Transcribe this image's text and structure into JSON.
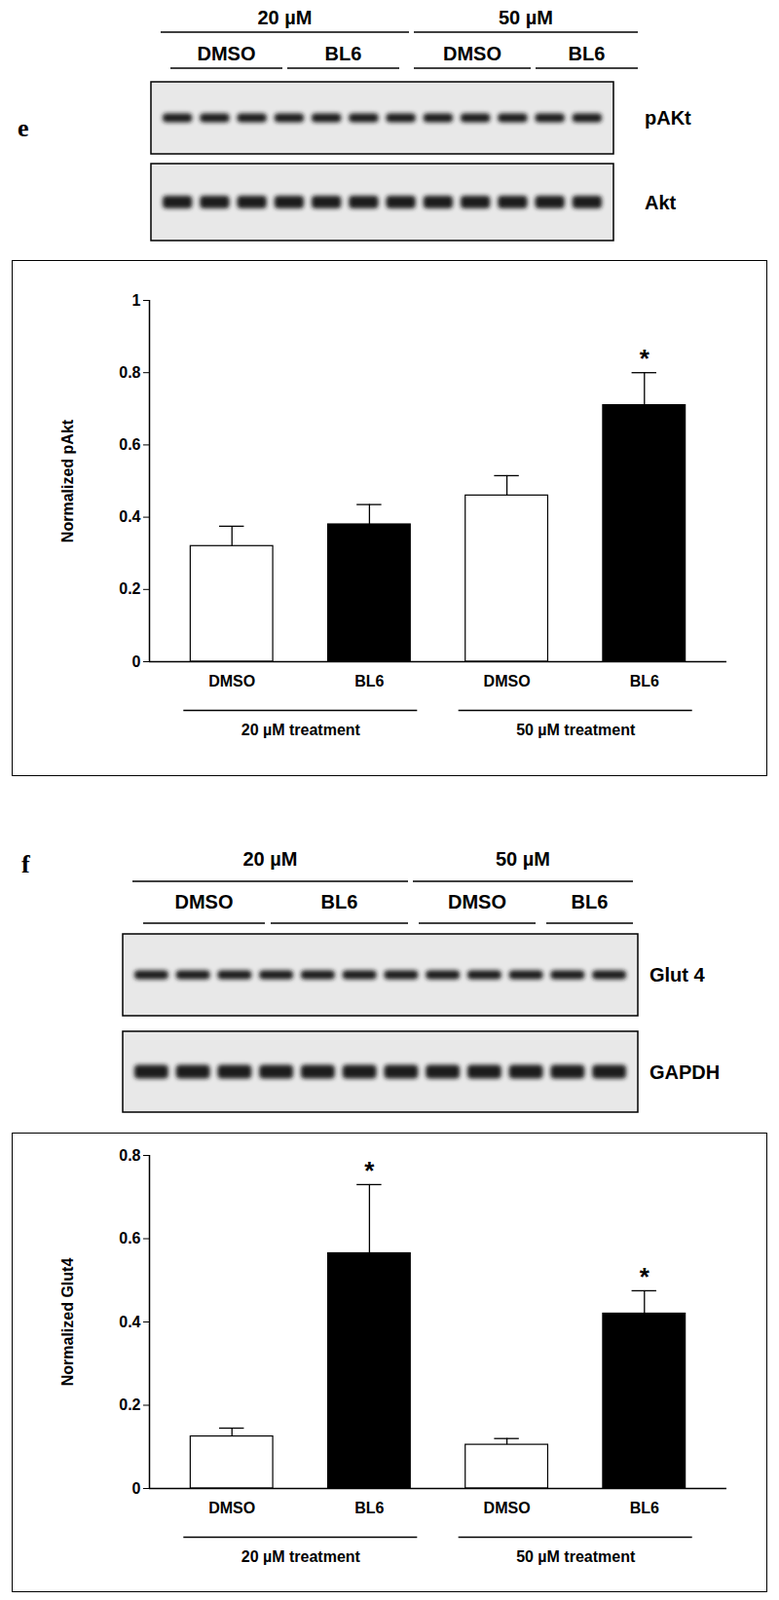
{
  "chart_data": [
    {
      "type": "bar",
      "ylabel": "Normalized pAkt",
      "categories": [
        "DMSO",
        "BL6",
        "DMSO",
        "BL6"
      ],
      "values": [
        0.32,
        0.38,
        0.46,
        0.71
      ],
      "errors": [
        0.055,
        0.055,
        0.055,
        0.09
      ],
      "colors": [
        "#ffffff",
        "#000000",
        "#ffffff",
        "#000000"
      ],
      "group_labels": [
        "20 µM treatment",
        "50 µM treatment"
      ],
      "annotations": [
        {
          "index": 3,
          "text": "*"
        }
      ],
      "ylim": [
        0,
        1
      ],
      "yticks": [
        0,
        0.2,
        0.4,
        0.6,
        0.8,
        1
      ]
    },
    {
      "type": "bar",
      "ylabel": "Normalized Glut4",
      "categories": [
        "DMSO",
        "BL6",
        "DMSO",
        "BL6"
      ],
      "values": [
        0.125,
        0.565,
        0.105,
        0.42
      ],
      "errors": [
        0.02,
        0.165,
        0.015,
        0.055
      ],
      "colors": [
        "#ffffff",
        "#000000",
        "#ffffff",
        "#000000"
      ],
      "group_labels": [
        "20 µM treatment",
        "50 µM treatment"
      ],
      "annotations": [
        {
          "index": 1,
          "text": "*"
        },
        {
          "index": 3,
          "text": "*"
        }
      ],
      "ylim": [
        0,
        0.8
      ],
      "yticks": [
        0,
        0.2,
        0.4,
        0.6,
        0.8
      ]
    }
  ],
  "blots": [
    {
      "panel": "e",
      "doses": [
        "20 µM",
        "50 µM"
      ],
      "treatments": [
        "DMSO",
        "BL6",
        "DMSO",
        "BL6"
      ],
      "rows": [
        "pAKt",
        "Akt"
      ]
    },
    {
      "panel": "f",
      "doses": [
        "20 µM",
        "50 µM"
      ],
      "treatments": [
        "DMSO",
        "BL6",
        "DMSO",
        "BL6"
      ],
      "rows": [
        "Glut 4",
        "GAPDH"
      ]
    }
  ]
}
